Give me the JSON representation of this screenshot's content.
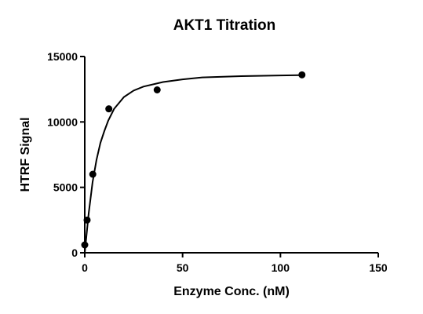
{
  "chart_data": {
    "type": "scatter",
    "title": "AKT1 Titration",
    "x_label": "Enzyme Conc. (nM)",
    "y_label": "HTRF Signal",
    "xlim": [
      0,
      150
    ],
    "ylim": [
      0,
      15000
    ],
    "xticks": [
      0,
      50,
      100,
      150
    ],
    "yticks": [
      0,
      5000,
      10000,
      15000
    ],
    "series": [
      {
        "type": "scatter",
        "color": "#000000",
        "x": [
          0,
          1.2,
          4.1,
          12.3,
          37,
          111
        ],
        "values": [
          600,
          2500,
          6000,
          11000,
          12450,
          13600
        ]
      },
      {
        "type": "line",
        "color": "#000000",
        "x": [
          0,
          2,
          4,
          6,
          8,
          10,
          12,
          15,
          20,
          25,
          30,
          40,
          50,
          60,
          80,
          100,
          111
        ],
        "values": [
          0,
          3000,
          5400,
          7100,
          8400,
          9300,
          10100,
          11000,
          11900,
          12400,
          12700,
          13050,
          13250,
          13400,
          13500,
          13550,
          13580
        ]
      }
    ]
  }
}
